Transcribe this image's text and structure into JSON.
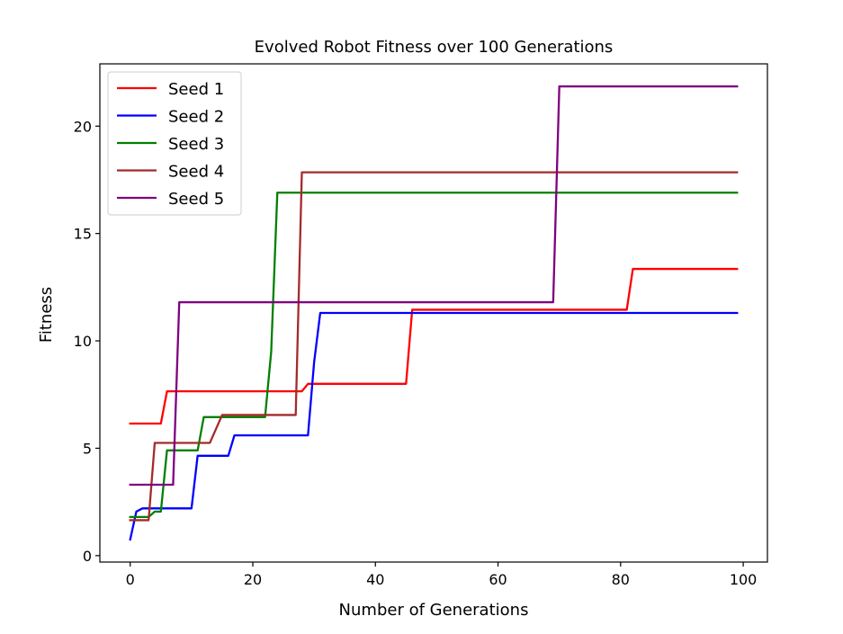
{
  "chart_data": {
    "type": "line",
    "title": "Evolved Robot Fitness over 100 Generations",
    "xlabel": "Number of Generations",
    "ylabel": "Fitness",
    "xlim": [
      -4.95,
      103.95
    ],
    "ylim": [
      -0.3,
      22.9
    ],
    "xticks": [
      0,
      20,
      40,
      60,
      80,
      100
    ],
    "yticks": [
      0,
      5,
      10,
      15,
      20
    ],
    "grid": false,
    "legend_position": "top-left",
    "series": [
      {
        "name": "Seed 1",
        "color": "#ff0000",
        "points": [
          [
            0,
            6.15
          ],
          [
            5,
            6.15
          ],
          [
            6,
            7.65
          ],
          [
            28,
            7.65
          ],
          [
            29,
            8.0
          ],
          [
            45,
            8.0
          ],
          [
            46,
            11.45
          ],
          [
            81,
            11.45
          ],
          [
            82,
            13.35
          ],
          [
            99,
            13.35
          ]
        ]
      },
      {
        "name": "Seed 2",
        "color": "#0000ff",
        "points": [
          [
            0,
            0.75
          ],
          [
            1,
            2.05
          ],
          [
            2,
            2.2
          ],
          [
            10,
            2.2
          ],
          [
            11,
            4.65
          ],
          [
            16,
            4.65
          ],
          [
            17,
            5.6
          ],
          [
            29,
            5.6
          ],
          [
            30,
            9.0
          ],
          [
            31,
            11.3
          ],
          [
            99,
            11.3
          ]
        ]
      },
      {
        "name": "Seed 3",
        "color": "#008000",
        "points": [
          [
            0,
            1.8
          ],
          [
            3,
            1.8
          ],
          [
            4,
            2.05
          ],
          [
            5,
            2.05
          ],
          [
            6,
            4.9
          ],
          [
            11,
            4.9
          ],
          [
            12,
            6.45
          ],
          [
            22,
            6.45
          ],
          [
            23,
            9.5
          ],
          [
            24,
            16.9
          ],
          [
            99,
            16.9
          ]
        ]
      },
      {
        "name": "Seed 4",
        "color": "#a52a2a",
        "points": [
          [
            0,
            1.65
          ],
          [
            3,
            1.65
          ],
          [
            4,
            5.25
          ],
          [
            13,
            5.25
          ],
          [
            15,
            6.55
          ],
          [
            27,
            6.55
          ],
          [
            28,
            17.85
          ],
          [
            99,
            17.85
          ]
        ]
      },
      {
        "name": "Seed 5",
        "color": "#800080",
        "points": [
          [
            0,
            3.3
          ],
          [
            7,
            3.3
          ],
          [
            8,
            11.8
          ],
          [
            69,
            11.8
          ],
          [
            70,
            21.85
          ],
          [
            99,
            21.85
          ]
        ]
      }
    ]
  }
}
